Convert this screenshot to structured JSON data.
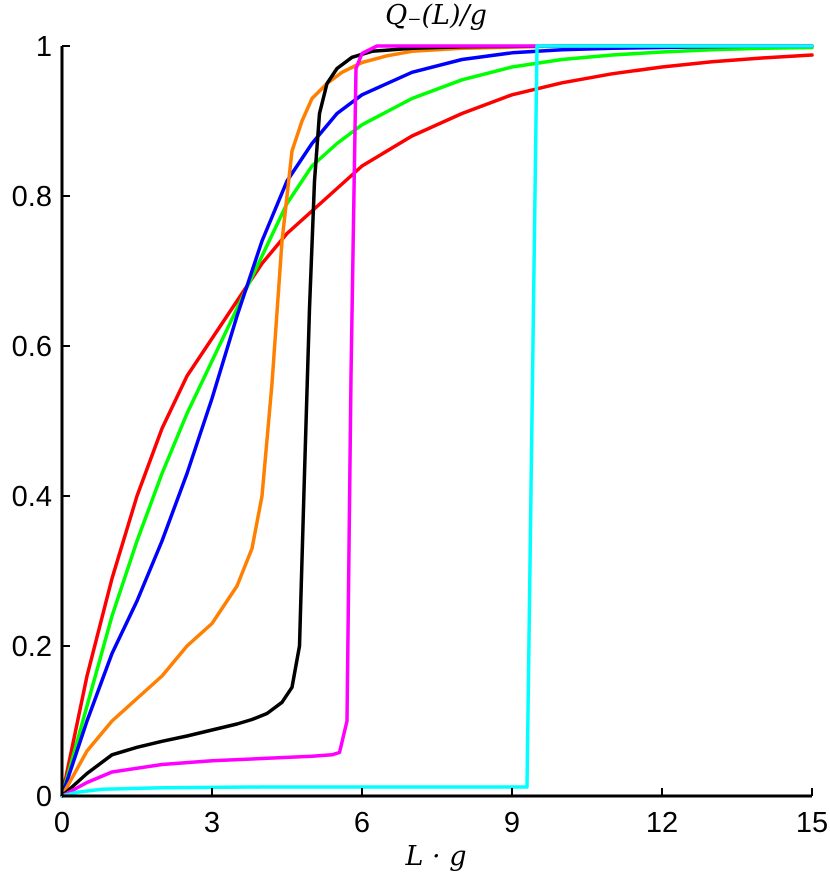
{
  "chart_data": {
    "type": "line",
    "title": "Q₋(L)/g",
    "xlabel": "L · g",
    "ylabel": "",
    "xlim": [
      0,
      15
    ],
    "ylim": [
      0,
      1
    ],
    "xticks": [
      0,
      3,
      6,
      9,
      12,
      15
    ],
    "yticks": [
      0,
      0.2,
      0.4,
      0.6,
      0.8,
      1
    ],
    "xtick_labels": [
      "0",
      "3",
      "6",
      "9",
      "12",
      "15"
    ],
    "ytick_labels": [
      "0",
      "0.2",
      "0.4",
      "0.6",
      "0.8",
      "1"
    ],
    "grid": false,
    "series": [
      {
        "color": "#ff0000",
        "x": [
          0,
          0.5,
          1,
          1.5,
          2,
          2.5,
          3,
          3.5,
          4,
          4.5,
          5,
          5.5,
          6,
          7,
          8,
          9,
          10,
          11,
          12,
          13,
          14,
          15
        ],
        "y": [
          0,
          0.16,
          0.29,
          0.4,
          0.49,
          0.56,
          0.61,
          0.66,
          0.71,
          0.75,
          0.78,
          0.81,
          0.84,
          0.88,
          0.91,
          0.935,
          0.951,
          0.963,
          0.972,
          0.979,
          0.984,
          0.988
        ]
      },
      {
        "color": "#00ff00",
        "x": [
          0,
          0.5,
          1,
          1.5,
          2,
          2.5,
          3,
          3.5,
          4,
          4.5,
          5,
          5.5,
          6,
          7,
          8,
          9,
          10,
          11,
          12,
          13,
          14,
          15
        ],
        "y": [
          0,
          0.12,
          0.24,
          0.34,
          0.43,
          0.51,
          0.58,
          0.65,
          0.72,
          0.79,
          0.84,
          0.87,
          0.895,
          0.93,
          0.955,
          0.972,
          0.982,
          0.988,
          0.992,
          0.995,
          0.997,
          0.998
        ]
      },
      {
        "color": "#0000ff",
        "x": [
          0,
          0.5,
          1,
          1.5,
          2,
          2.5,
          3,
          3.5,
          4,
          4.5,
          5,
          5.5,
          6,
          7,
          8,
          9,
          10,
          11,
          12,
          13,
          14,
          15
        ],
        "y": [
          0,
          0.1,
          0.19,
          0.26,
          0.34,
          0.43,
          0.53,
          0.64,
          0.74,
          0.82,
          0.87,
          0.91,
          0.935,
          0.965,
          0.982,
          0.991,
          0.995,
          0.997,
          0.998,
          0.999,
          1.0,
          1.0
        ]
      },
      {
        "color": "#ff8000",
        "x": [
          0,
          0.5,
          1,
          1.5,
          2,
          2.5,
          3,
          3.5,
          3.8,
          4.0,
          4.2,
          4.4,
          4.6,
          4.8,
          5.0,
          5.3,
          5.6,
          6,
          6.5,
          7,
          8,
          10,
          12,
          15
        ],
        "y": [
          0,
          0.06,
          0.1,
          0.13,
          0.16,
          0.2,
          0.23,
          0.28,
          0.33,
          0.4,
          0.55,
          0.74,
          0.86,
          0.9,
          0.93,
          0.95,
          0.965,
          0.978,
          0.987,
          0.993,
          0.997,
          1.0,
          1.0,
          1.0
        ]
      },
      {
        "color": "#000000",
        "x": [
          0,
          0.5,
          1,
          1.5,
          2,
          2.5,
          3,
          3.5,
          3.8,
          4.1,
          4.4,
          4.6,
          4.75,
          4.85,
          4.95,
          5.05,
          5.15,
          5.3,
          5.5,
          5.8,
          6.2,
          7,
          8,
          10,
          12,
          15
        ],
        "y": [
          0,
          0.03,
          0.055,
          0.065,
          0.073,
          0.08,
          0.088,
          0.096,
          0.102,
          0.11,
          0.125,
          0.145,
          0.2,
          0.43,
          0.65,
          0.82,
          0.91,
          0.95,
          0.97,
          0.985,
          0.993,
          0.997,
          0.999,
          1.0,
          1.0,
          1.0
        ]
      },
      {
        "color": "#ff00ff",
        "x": [
          0,
          0.5,
          1,
          2,
          3,
          4,
          5,
          5.4,
          5.55,
          5.7,
          5.78,
          5.88,
          6.0,
          6.3,
          7,
          9,
          12,
          15
        ],
        "y": [
          0,
          0.018,
          0.032,
          0.042,
          0.047,
          0.05,
          0.053,
          0.055,
          0.058,
          0.1,
          0.56,
          0.97,
          0.99,
          1.0,
          1.0,
          1.0,
          1.0,
          1.0
        ]
      },
      {
        "color": "#00ffff",
        "x": [
          0,
          0.3,
          0.8,
          2,
          4,
          6,
          8,
          9.3,
          9.5,
          10,
          12,
          15
        ],
        "y": [
          0,
          0.005,
          0.009,
          0.011,
          0.012,
          0.012,
          0.012,
          0.012,
          1.0,
          1.0,
          1.0,
          1.0
        ]
      }
    ]
  }
}
